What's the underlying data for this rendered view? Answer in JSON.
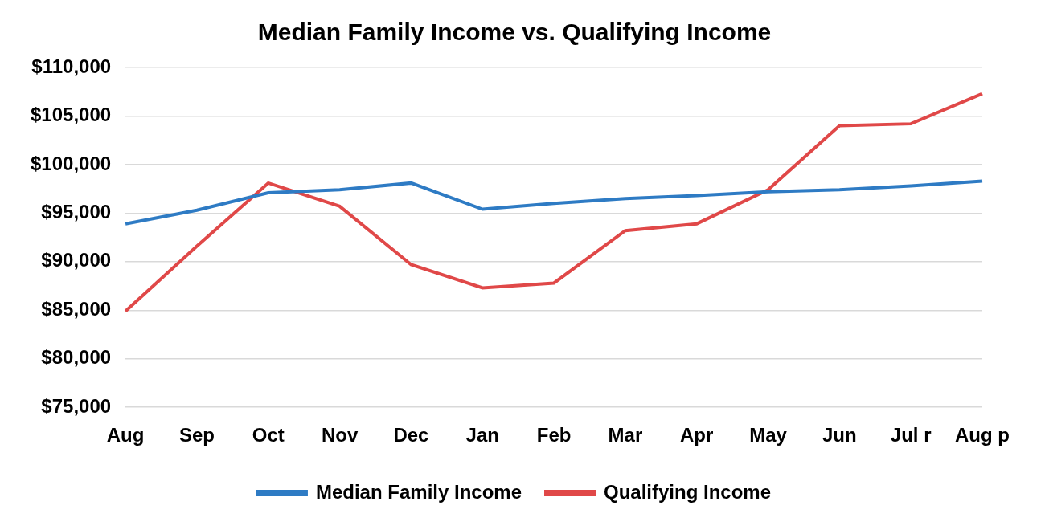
{
  "chart_data": {
    "type": "line",
    "title": "Median Family Income vs. Qualifying Income",
    "categories": [
      "Aug",
      "Sep",
      "Oct",
      "Nov",
      "Dec",
      "Jan",
      "Feb",
      "Mar",
      "Apr",
      "May",
      "Jun",
      "Jul r",
      "Aug p"
    ],
    "series": [
      {
        "name": "Median Family Income",
        "color": "#2e7bc4",
        "values": [
          93900,
          95300,
          97100,
          97400,
          98100,
          95400,
          96000,
          96500,
          96800,
          97200,
          97400,
          97800,
          98300
        ]
      },
      {
        "name": "Qualifying Income",
        "color": "#e04848",
        "values": [
          84900,
          91600,
          98100,
          95700,
          89700,
          87300,
          87800,
          93200,
          93900,
          97400,
          104000,
          104200,
          107300
        ]
      }
    ],
    "ylim": [
      75000,
      110000
    ],
    "yticks": [
      {
        "value": 75000,
        "label": "$75,000"
      },
      {
        "value": 80000,
        "label": "$80,000"
      },
      {
        "value": 85000,
        "label": "$85,000"
      },
      {
        "value": 90000,
        "label": "$90,000"
      },
      {
        "value": 95000,
        "label": "$95,000"
      },
      {
        "value": 100000,
        "label": "$100,000"
      },
      {
        "value": 105000,
        "label": "$105,000"
      },
      {
        "value": 110000,
        "label": "$110,000"
      }
    ],
    "grid": true,
    "legend": "bottom"
  }
}
